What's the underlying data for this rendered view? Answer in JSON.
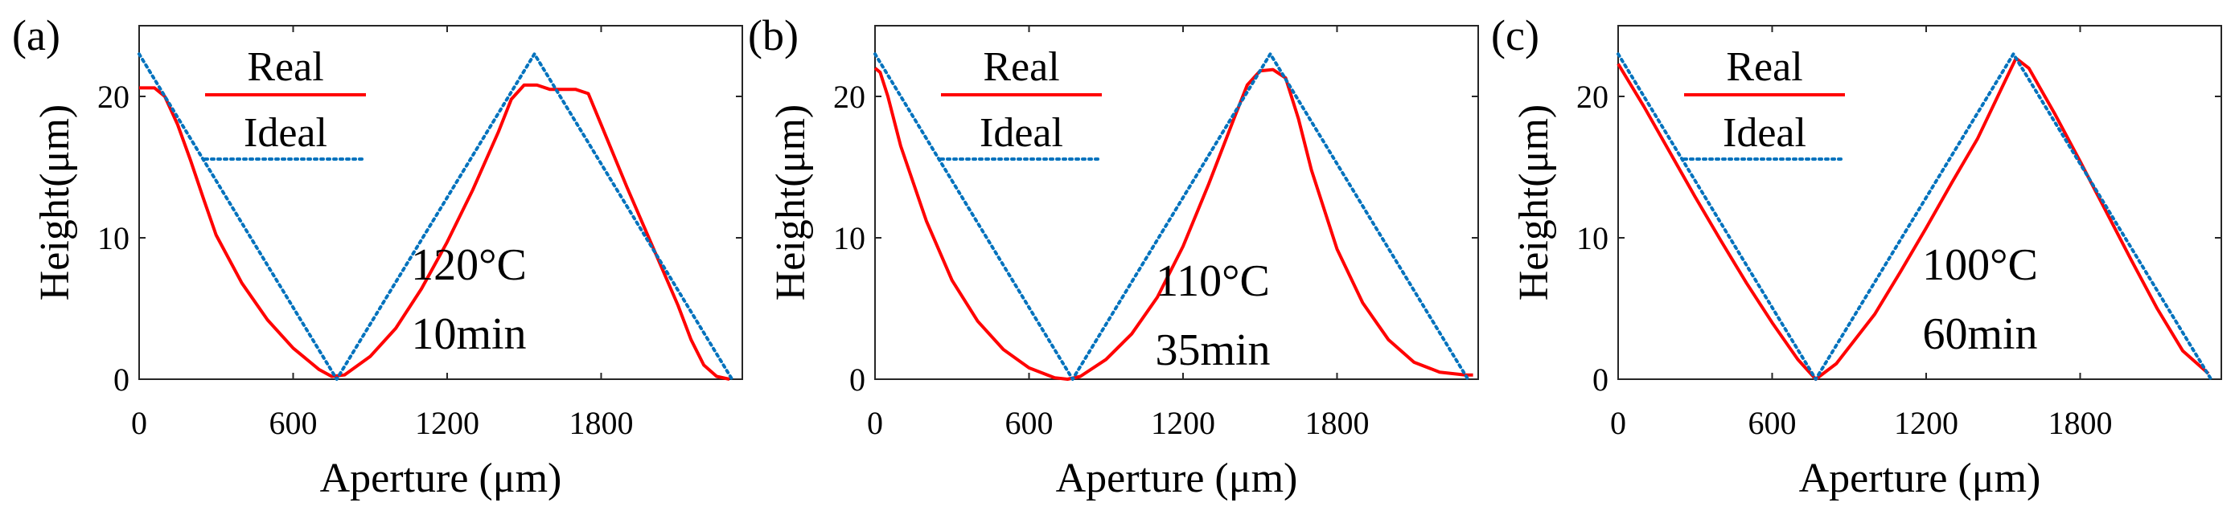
{
  "chart_data": [
    {
      "type": "line",
      "panel_label": "(a)",
      "xlabel": "Aperture (μm)",
      "ylabel": "Height(μm)",
      "xlim": [
        0,
        2350
      ],
      "ylim": [
        0,
        25
      ],
      "xticks": [
        "0",
        "600",
        "1200",
        "1800"
      ],
      "xtick_values": [
        0,
        600,
        1200,
        1800
      ],
      "yticks": [
        "0",
        "10",
        "20"
      ],
      "ytick_values": [
        0,
        10,
        20
      ],
      "annotation": [
        "120°C",
        "10min"
      ],
      "legend": [
        "Real",
        "Ideal"
      ],
      "series": [
        {
          "name": "Real",
          "color": "#ff0000",
          "style": "solid",
          "x": [
            0,
            60,
            100,
            150,
            200,
            250,
            300,
            400,
            500,
            600,
            700,
            750,
            800,
            900,
            1000,
            1100,
            1200,
            1300,
            1400,
            1450,
            1500,
            1550,
            1600,
            1700,
            1750,
            1800,
            1900,
            2000,
            2100,
            2150,
            2200,
            2250,
            2300
          ],
          "y": [
            20.6,
            20.6,
            20.0,
            18.0,
            15.5,
            12.8,
            10.2,
            6.8,
            4.2,
            2.2,
            0.7,
            0.2,
            0.3,
            1.6,
            3.6,
            6.4,
            9.7,
            13.4,
            17.5,
            19.8,
            20.8,
            20.8,
            20.5,
            20.5,
            20.2,
            18.0,
            13.6,
            9.4,
            5.2,
            2.8,
            1.0,
            0.2,
            0.0
          ]
        },
        {
          "name": "Ideal",
          "color": "#0072bd",
          "style": "dotted",
          "x": [
            0,
            770,
            1540,
            2310
          ],
          "y": [
            23.0,
            0.0,
            23.0,
            0.0
          ]
        }
      ]
    },
    {
      "type": "line",
      "panel_label": "(b)",
      "xlabel": "Aperture (μm)",
      "ylabel": "Height(μm)",
      "xlim": [
        0,
        2350
      ],
      "ylim": [
        0,
        25
      ],
      "xticks": [
        "0",
        "600",
        "1200",
        "1800"
      ],
      "xtick_values": [
        0,
        600,
        1200,
        1800
      ],
      "yticks": [
        "0",
        "10",
        "20"
      ],
      "ytick_values": [
        0,
        10,
        20
      ],
      "annotation": [
        "110°C",
        "35min"
      ],
      "legend": [
        "Real",
        "Ideal"
      ],
      "series": [
        {
          "name": "Real",
          "color": "#ff0000",
          "style": "solid",
          "x": [
            0,
            20,
            50,
            100,
            200,
            300,
            400,
            500,
            600,
            700,
            750,
            800,
            900,
            1000,
            1100,
            1200,
            1300,
            1400,
            1450,
            1500,
            1550,
            1600,
            1650,
            1700,
            1800,
            1900,
            2000,
            2100,
            2200,
            2300,
            2330
          ],
          "y": [
            22.0,
            21.7,
            20.0,
            16.5,
            11.2,
            7.0,
            4.1,
            2.1,
            0.8,
            0.1,
            0.0,
            0.2,
            1.4,
            3.2,
            5.8,
            9.4,
            13.8,
            18.5,
            20.8,
            21.8,
            21.9,
            21.3,
            18.4,
            14.8,
            9.2,
            5.4,
            2.8,
            1.2,
            0.5,
            0.3,
            0.3
          ]
        },
        {
          "name": "Ideal",
          "color": "#0072bd",
          "style": "dotted",
          "x": [
            0,
            770,
            1540,
            2310
          ],
          "y": [
            23.0,
            0.0,
            23.0,
            0.0
          ]
        }
      ]
    },
    {
      "type": "line",
      "panel_label": "(c)",
      "xlabel": "Aperture (μm)",
      "ylabel": "Height(μm)",
      "xlim": [
        0,
        2350
      ],
      "ylim": [
        0,
        25
      ],
      "xticks": [
        "0",
        "600",
        "1200",
        "1800"
      ],
      "xtick_values": [
        0,
        600,
        1200,
        1800
      ],
      "yticks": [
        "0",
        "10",
        "20"
      ],
      "ytick_values": [
        0,
        10,
        20
      ],
      "annotation": [
        "100°C",
        "60min"
      ],
      "legend": [
        "Real",
        "Ideal"
      ],
      "series": [
        {
          "name": "Real",
          "color": "#ff0000",
          "style": "solid",
          "x": [
            0,
            100,
            200,
            300,
            400,
            500,
            600,
            700,
            770,
            850,
            1000,
            1100,
            1200,
            1300,
            1400,
            1500,
            1550,
            1600,
            1700,
            1800,
            1900,
            2000,
            2100,
            2200,
            2300
          ],
          "y": [
            22.3,
            19.3,
            16.1,
            12.9,
            9.8,
            6.8,
            4.0,
            1.4,
            0.0,
            1.1,
            4.6,
            7.6,
            10.7,
            13.9,
            17.0,
            20.8,
            22.7,
            22.0,
            18.8,
            15.4,
            11.9,
            8.4,
            5.0,
            2.0,
            0.4
          ]
        },
        {
          "name": "Ideal",
          "color": "#0072bd",
          "style": "dotted",
          "x": [
            0,
            770,
            1540,
            2310
          ],
          "y": [
            23.0,
            0.0,
            23.0,
            0.0
          ]
        }
      ]
    }
  ]
}
